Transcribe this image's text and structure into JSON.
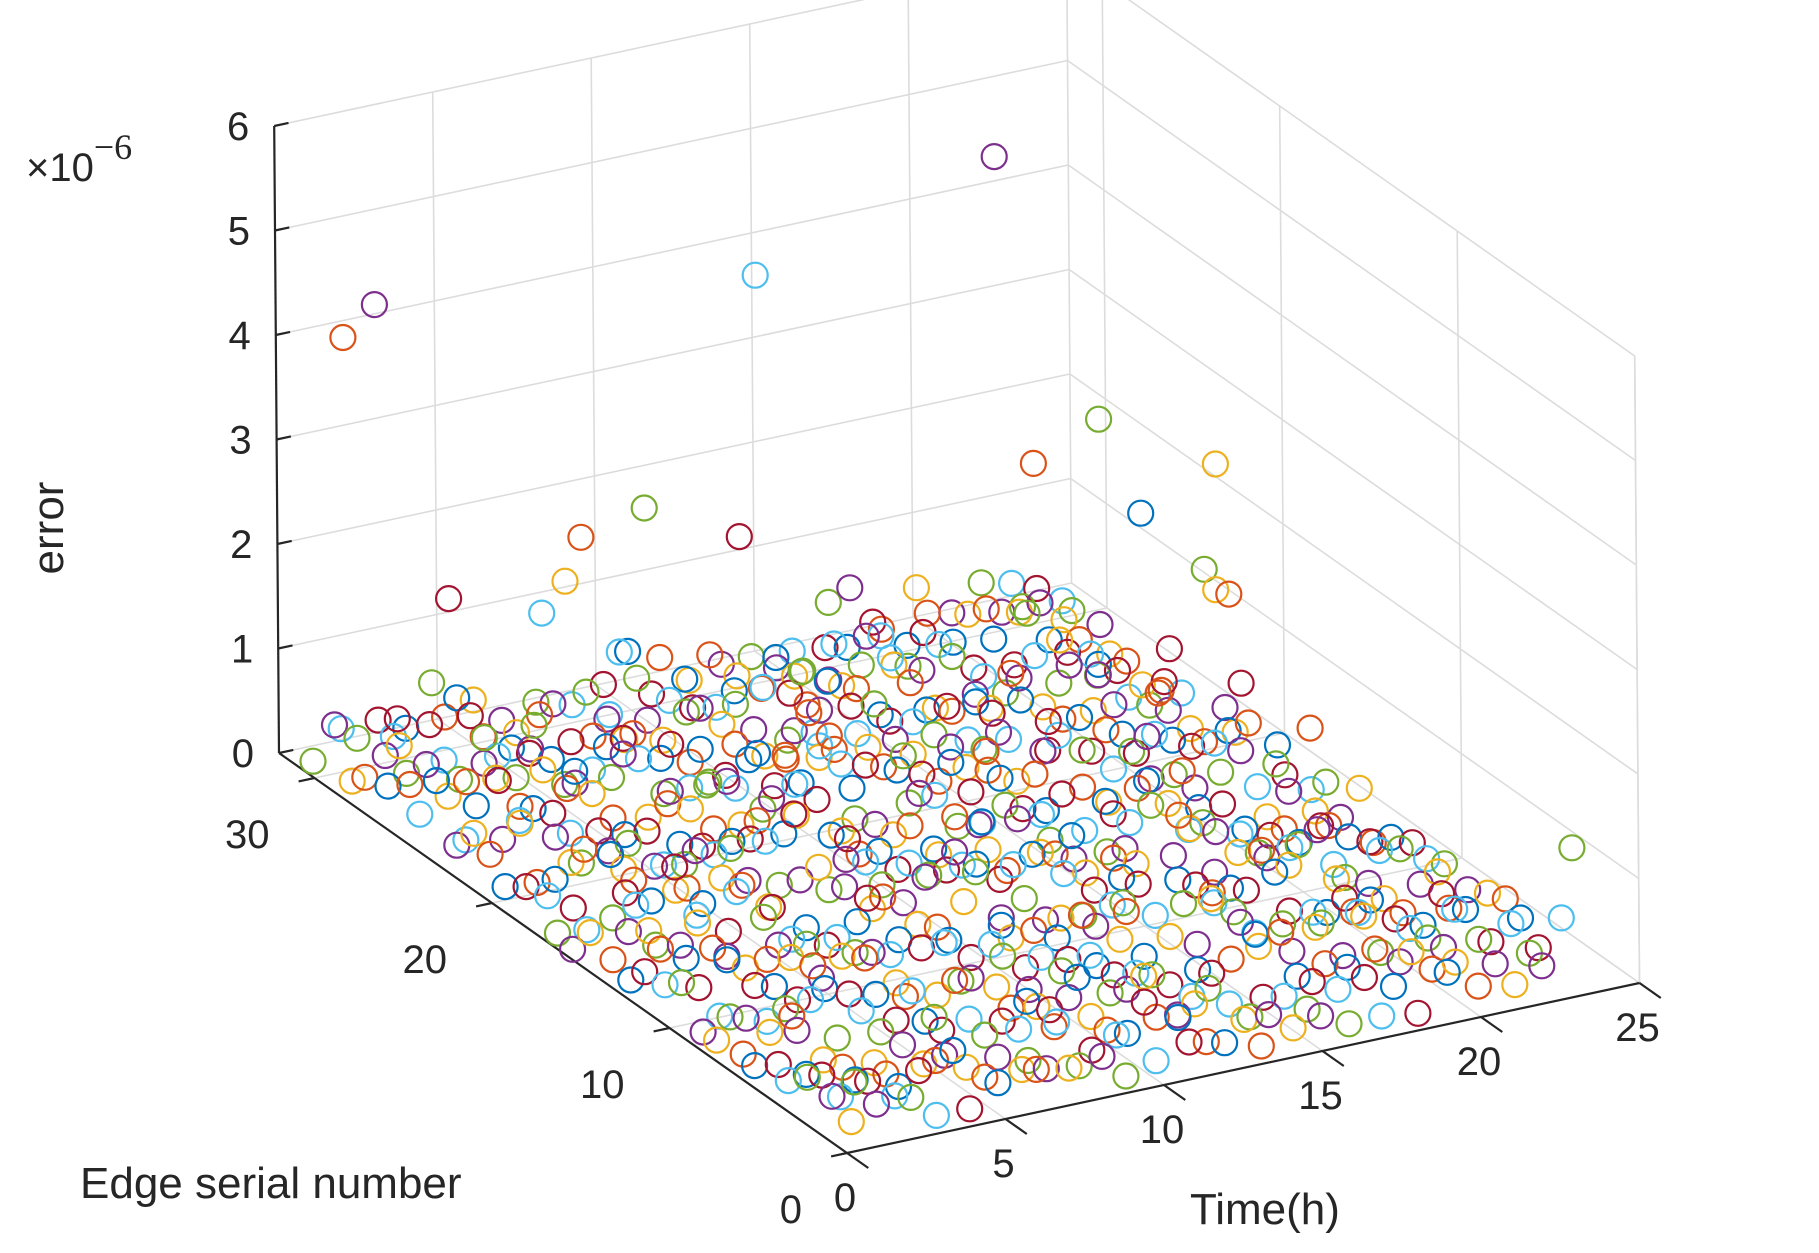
{
  "chart_data": {
    "type": "scatter3",
    "title": "",
    "xlabel": "Time(h)",
    "ylabel": "Edge serial number",
    "zlabel": "error",
    "z_exponent_label": "×10",
    "z_exponent_power": "−6",
    "xlim": [
      0,
      25
    ],
    "ylim": [
      0,
      32
    ],
    "zlim": [
      0,
      6
    ],
    "xticks": [
      "0",
      "5",
      "10",
      "15",
      "20",
      "25"
    ],
    "yticks": [
      "0",
      "10",
      "20",
      "30"
    ],
    "zticks": [
      "0",
      "1",
      "2",
      "3",
      "4",
      "5",
      "6"
    ],
    "marker": "open circle",
    "grid": true,
    "colors": [
      "#0072bd",
      "#d95319",
      "#edb120",
      "#7e2f8e",
      "#77ac30",
      "#4dbeee",
      "#a2142f"
    ],
    "series_count": 24,
    "series_note": "one series per hour, x = hour index, y = edge serial number (1-31), z = error ×1e-6",
    "outliers": [
      {
        "x": 1,
        "y": 30,
        "z": 4.15,
        "color_index": 1
      },
      {
        "x": 2,
        "y": 30,
        "z": 4.4,
        "color_index": 3
      },
      {
        "x": 4,
        "y": 22,
        "z": 3.0,
        "color_index": 1
      },
      {
        "x": 6,
        "y": 22,
        "z": 3.15,
        "color_index": 4
      },
      {
        "x": 14,
        "y": 30,
        "z": 3.9,
        "color_index": 5
      },
      {
        "x": 21,
        "y": 29,
        "z": 4.7,
        "color_index": 3
      },
      {
        "x": 22,
        "y": 25,
        "z": 2.6,
        "color_index": 4
      },
      {
        "x": 24,
        "y": 22,
        "z": 2.4,
        "color_index": 2
      }
    ]
  }
}
